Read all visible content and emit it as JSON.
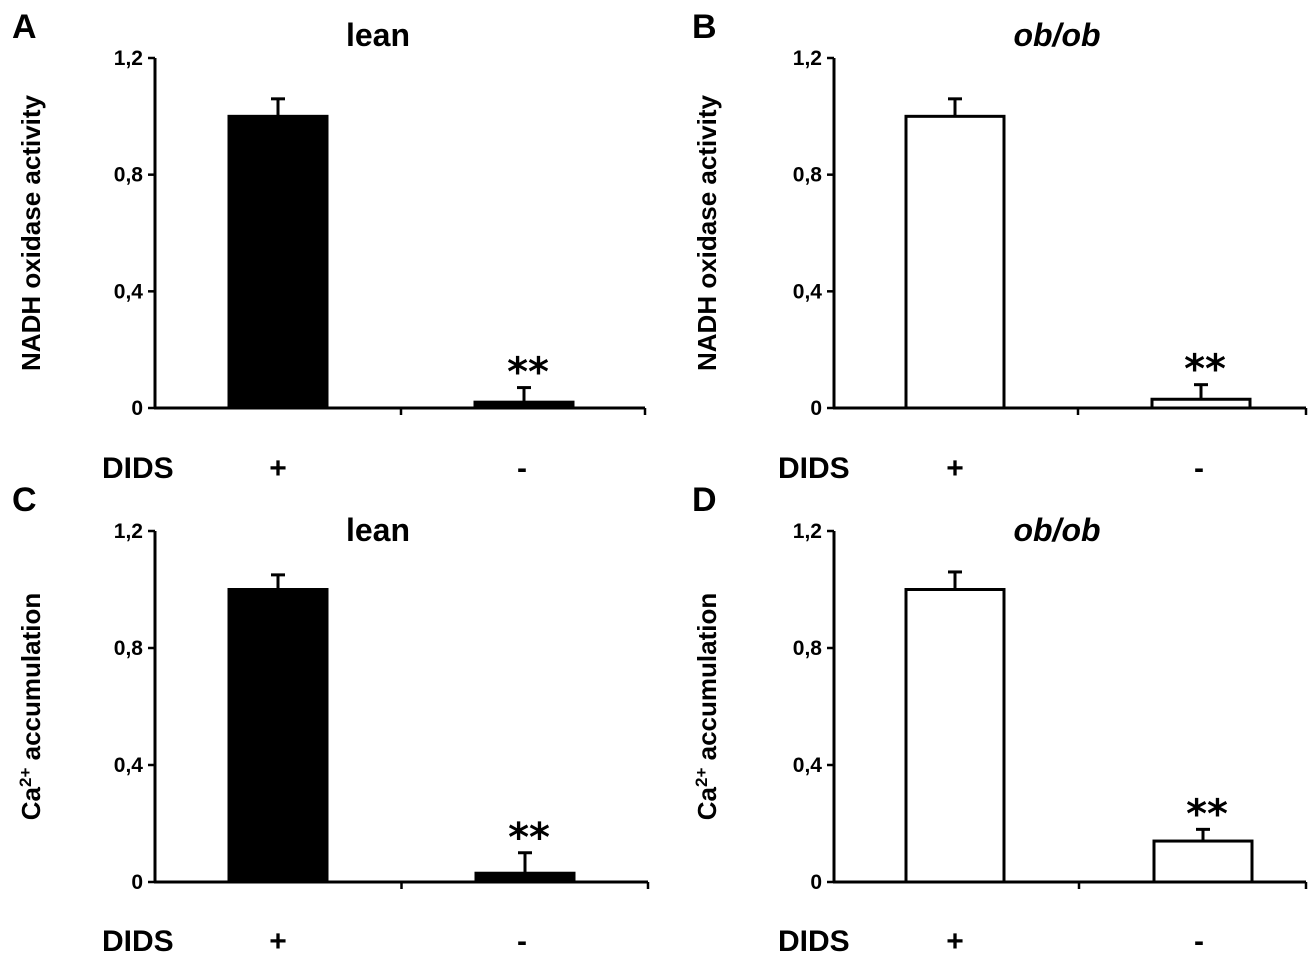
{
  "chart_data": [
    {
      "type": "bar",
      "panel": "A",
      "title": "lean",
      "title_italic": false,
      "ylabel": "NADH oxidase activity",
      "xlabel": "DIDS",
      "categories": [
        "+",
        "-"
      ],
      "values": [
        1.0,
        0.02
      ],
      "errors": [
        0.06,
        0.05
      ],
      "significance": [
        "",
        "**"
      ],
      "bar_fill": "#000000",
      "ylim": [
        0,
        1.2
      ],
      "yticks": [
        0,
        0.4,
        0.8,
        1.2
      ],
      "ytick_labels": [
        "0",
        "0,4",
        "0,8",
        "1,2"
      ],
      "grid": false,
      "legend": "none"
    },
    {
      "type": "bar",
      "panel": "B",
      "title": "ob/ob",
      "title_italic": true,
      "ylabel": "NADH oxidase activity",
      "xlabel": "DIDS",
      "categories": [
        "+",
        "-"
      ],
      "values": [
        1.0,
        0.03
      ],
      "errors": [
        0.06,
        0.05
      ],
      "significance": [
        "",
        "**"
      ],
      "bar_fill": "#ffffff",
      "ylim": [
        0,
        1.2
      ],
      "yticks": [
        0,
        0.4,
        0.8,
        1.2
      ],
      "ytick_labels": [
        "0",
        "0,4",
        "0,8",
        "1,2"
      ],
      "grid": false,
      "legend": "none"
    },
    {
      "type": "bar",
      "panel": "C",
      "title": "lean",
      "title_italic": false,
      "ylabel": "Ca",
      "ylabel_sup": "2+",
      "ylabel_rest": " accumulation",
      "xlabel": "DIDS",
      "categories": [
        "+",
        "-"
      ],
      "values": [
        1.0,
        0.03
      ],
      "errors": [
        0.05,
        0.07
      ],
      "significance": [
        "",
        "**"
      ],
      "bar_fill": "#000000",
      "ylim": [
        0,
        1.2
      ],
      "yticks": [
        0,
        0.4,
        0.8,
        1.2
      ],
      "ytick_labels": [
        "0",
        "0,4",
        "0,8",
        "1,2"
      ],
      "grid": false,
      "legend": "none"
    },
    {
      "type": "bar",
      "panel": "D",
      "title": "ob/ob",
      "title_italic": true,
      "ylabel": "Ca",
      "ylabel_sup": "2+",
      "ylabel_rest": " accumulation",
      "xlabel": "DIDS",
      "categories": [
        "+",
        "-"
      ],
      "values": [
        1.0,
        0.14
      ],
      "errors": [
        0.06,
        0.04
      ],
      "significance": [
        "",
        "**"
      ],
      "bar_fill": "#ffffff",
      "ylim": [
        0,
        1.2
      ],
      "yticks": [
        0,
        0.4,
        0.8,
        1.2
      ],
      "ytick_labels": [
        "0",
        "0,4",
        "0,8",
        "1,2"
      ],
      "grid": false,
      "legend": "none"
    }
  ]
}
